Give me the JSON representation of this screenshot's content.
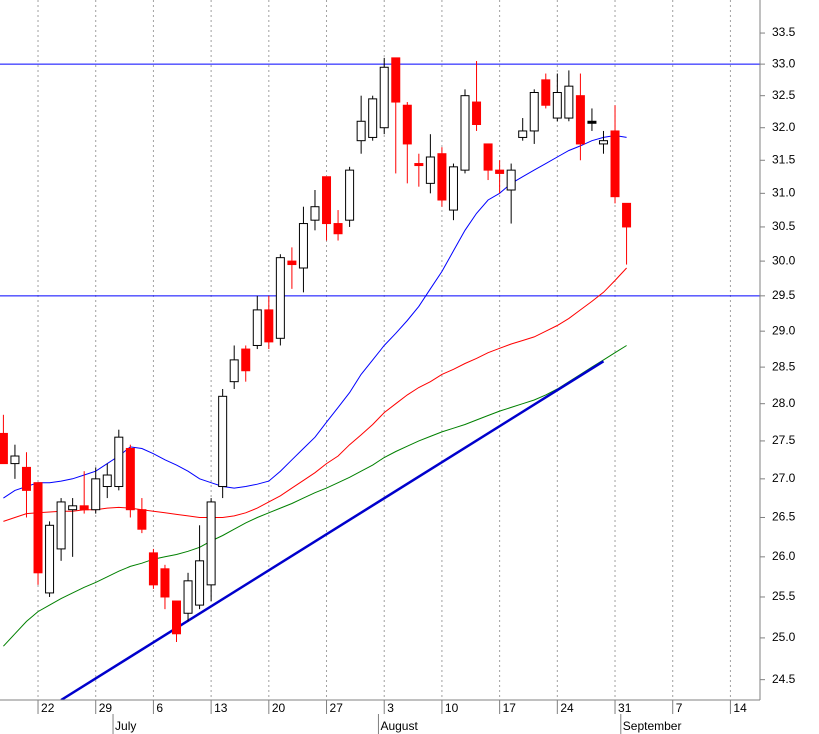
{
  "chart_data": {
    "type": "candlestick",
    "categories": [
      null,
      null,
      null,
      "22",
      null,
      null,
      null,
      null,
      "29",
      null,
      null,
      null,
      null,
      "6",
      null,
      null,
      null,
      null,
      "13",
      null,
      null,
      null,
      null,
      "20",
      null,
      null,
      null,
      null,
      "27",
      null,
      null,
      null,
      null,
      "3",
      null,
      null,
      null,
      null,
      "10",
      null,
      null,
      null,
      null,
      "17",
      null,
      null,
      null,
      null,
      "24",
      null,
      null,
      null,
      null,
      "31",
      null,
      null,
      null,
      null,
      "7",
      null,
      null,
      null,
      null,
      "14",
      null,
      null
    ],
    "months": [
      "July",
      "August",
      "September"
    ],
    "open": [
      27.6,
      27.2,
      27.15,
      26.95,
      25.55,
      26.1,
      26.6,
      26.65,
      26.6,
      26.9,
      26.9,
      27.4,
      26.6,
      26.05,
      25.85,
      25.45,
      25.3,
      25.4,
      25.65,
      26.9,
      28.3,
      28.75,
      28.8,
      29.3,
      28.9,
      30.0,
      29.9,
      30.6,
      31.25,
      30.55,
      30.6,
      31.8,
      31.85,
      32.0,
      33.1,
      32.35,
      31.45,
      31.15,
      31.6,
      30.75,
      31.35,
      32.4,
      31.75,
      31.35,
      31.05,
      31.85,
      31.95,
      32.75,
      32.15,
      32.15,
      32.5,
      32.1,
      31.75,
      31.95,
      30.85,
      null,
      null,
      null,
      null,
      null,
      null,
      null,
      null,
      null,
      null,
      null
    ],
    "high": [
      27.85,
      27.45,
      27.35,
      26.95,
      26.45,
      26.75,
      26.75,
      27.1,
      27.15,
      27.2,
      27.65,
      27.45,
      26.75,
      26.1,
      25.9,
      25.45,
      25.8,
      26.4,
      26.75,
      28.2,
      28.8,
      28.8,
      29.5,
      29.5,
      30.1,
      30.2,
      30.8,
      31.05,
      31.25,
      30.75,
      31.4,
      32.5,
      32.5,
      33.1,
      33.1,
      32.4,
      31.6,
      31.9,
      31.7,
      31.45,
      32.6,
      33.05,
      31.75,
      31.5,
      31.45,
      32.15,
      32.6,
      32.85,
      32.85,
      32.9,
      32.85,
      32.3,
      31.95,
      32.35,
      30.85,
      null,
      null,
      null,
      null,
      null,
      null,
      null,
      null,
      null,
      null,
      null
    ],
    "low": [
      27.2,
      27.0,
      26.5,
      25.65,
      25.5,
      25.95,
      26.0,
      26.55,
      26.55,
      26.75,
      26.85,
      26.5,
      26.3,
      25.6,
      25.35,
      24.95,
      25.2,
      25.35,
      25.45,
      26.75,
      28.2,
      28.3,
      28.75,
      28.75,
      28.8,
      29.6,
      29.55,
      30.45,
      30.3,
      30.3,
      30.5,
      31.6,
      31.8,
      31.9,
      31.3,
      31.15,
      31.1,
      31.0,
      30.8,
      30.6,
      31.3,
      31.95,
      31.2,
      31.0,
      30.55,
      31.8,
      31.75,
      32.3,
      32.1,
      32.1,
      31.5,
      31.95,
      31.6,
      30.85,
      29.95,
      null,
      null,
      null,
      null,
      null,
      null,
      null,
      null,
      null,
      null,
      null
    ],
    "close": [
      27.2,
      27.3,
      26.85,
      25.8,
      26.4,
      26.7,
      26.65,
      26.6,
      27.0,
      27.05,
      27.55,
      26.6,
      26.35,
      25.65,
      25.5,
      25.05,
      25.7,
      25.95,
      26.7,
      28.1,
      28.6,
      28.45,
      29.3,
      28.85,
      30.05,
      29.95,
      30.55,
      30.8,
      30.55,
      30.4,
      31.35,
      32.1,
      32.45,
      32.95,
      32.4,
      31.75,
      31.42,
      31.55,
      30.9,
      31.4,
      32.5,
      32.05,
      31.35,
      31.3,
      31.35,
      31.95,
      32.55,
      32.35,
      32.55,
      32.65,
      31.75,
      32.1,
      31.8,
      30.95,
      30.5,
      null,
      null,
      null,
      null,
      null,
      null,
      null,
      null,
      null,
      null,
      null
    ],
    "up_color": "#ffffff",
    "down_color": "#ff0000",
    "flat_color": "#000000",
    "series": [
      {
        "color": "#0000ff",
        "values": [
          26.75,
          26.85,
          26.9,
          26.95,
          26.95,
          26.97,
          27.0,
          27.05,
          27.1,
          27.2,
          27.3,
          27.42,
          27.4,
          27.33,
          27.25,
          27.18,
          27.1,
          27.0,
          26.95,
          26.9,
          26.88,
          26.9,
          26.93,
          26.97,
          27.1,
          27.25,
          27.4,
          27.55,
          27.75,
          27.95,
          28.15,
          28.4,
          28.6,
          28.8,
          28.97,
          29.15,
          29.35,
          29.6,
          29.85,
          30.15,
          30.45,
          30.7,
          30.9,
          31.0,
          31.15,
          31.25,
          31.35,
          31.45,
          31.55,
          31.65,
          31.72,
          31.8,
          31.85,
          31.88,
          31.85,
          null,
          null,
          null,
          null,
          null,
          null,
          null,
          null,
          null,
          null,
          null
        ]
      },
      {
        "color": "#ff0000",
        "values": [
          26.45,
          26.5,
          26.55,
          26.56,
          26.57,
          26.58,
          26.58,
          26.6,
          26.6,
          26.62,
          26.63,
          26.62,
          26.6,
          26.58,
          26.56,
          26.54,
          26.52,
          26.5,
          26.5,
          26.5,
          26.52,
          26.56,
          26.62,
          26.7,
          26.78,
          26.88,
          26.98,
          27.08,
          27.2,
          27.3,
          27.45,
          27.58,
          27.72,
          27.88,
          28.0,
          28.12,
          28.22,
          28.3,
          28.4,
          28.47,
          28.55,
          28.62,
          28.7,
          28.76,
          28.82,
          28.87,
          28.92,
          29.0,
          29.08,
          29.18,
          29.3,
          29.42,
          29.55,
          29.72,
          29.9,
          null,
          null,
          null,
          null,
          null,
          null,
          null,
          null,
          null,
          null,
          null
        ]
      },
      {
        "color": "#008000",
        "values": [
          24.9,
          25.05,
          25.2,
          25.32,
          25.4,
          25.48,
          25.55,
          25.62,
          25.68,
          25.75,
          25.82,
          25.88,
          25.92,
          25.97,
          26.0,
          26.03,
          26.07,
          26.12,
          26.2,
          26.27,
          26.35,
          26.43,
          26.5,
          26.56,
          26.62,
          26.68,
          26.75,
          26.82,
          26.88,
          26.95,
          27.02,
          27.1,
          27.18,
          27.28,
          27.36,
          27.43,
          27.5,
          27.56,
          27.62,
          27.67,
          27.72,
          27.78,
          27.84,
          27.9,
          27.95,
          28.0,
          28.05,
          28.12,
          28.2,
          28.3,
          28.4,
          28.5,
          28.6,
          28.7,
          28.8,
          null,
          null,
          null,
          null,
          null,
          null,
          null,
          null,
          null,
          null,
          null
        ]
      }
    ],
    "trendline": {
      "color": "#0000cc",
      "values": [
        null,
        null,
        null,
        null,
        null,
        24.26,
        null,
        null,
        null,
        null,
        null,
        null,
        null,
        null,
        null,
        null,
        null,
        null,
        null,
        null,
        null,
        null,
        null,
        null,
        null,
        null,
        null,
        null,
        null,
        null,
        null,
        null,
        null,
        null,
        null,
        null,
        null,
        null,
        null,
        null,
        null,
        null,
        null,
        null,
        null,
        null,
        null,
        null,
        null,
        null,
        null,
        null,
        28.58,
        null,
        null,
        null,
        null,
        null,
        null,
        null,
        null,
        null,
        null,
        null,
        null,
        null
      ]
    },
    "hlines": {
      "color": "#0000ff",
      "values": [
        33.0,
        29.5
      ]
    },
    "log_scale": true,
    "xgrid": true,
    "ygrid": false,
    "ylim": [
      24.26,
      34.04
    ],
    "yticks": [
      24.5,
      {
        "value": 25,
        "label": "25.0"
      },
      25.5,
      {
        "value": 26,
        "label": "26.0"
      },
      26.5,
      {
        "value": 27,
        "label": "27.0"
      },
      27.5,
      {
        "value": 28,
        "label": "28.0"
      },
      28.5,
      {
        "value": 29,
        "label": "29.0"
      },
      29.5,
      {
        "value": 30,
        "label": "30.0"
      },
      30.5,
      {
        "value": 31,
        "label": "31.0"
      },
      31.5,
      {
        "value": 32,
        "label": "32.0"
      },
      32.5,
      {
        "value": 33,
        "label": "33.0"
      },
      33.5
    ]
  }
}
